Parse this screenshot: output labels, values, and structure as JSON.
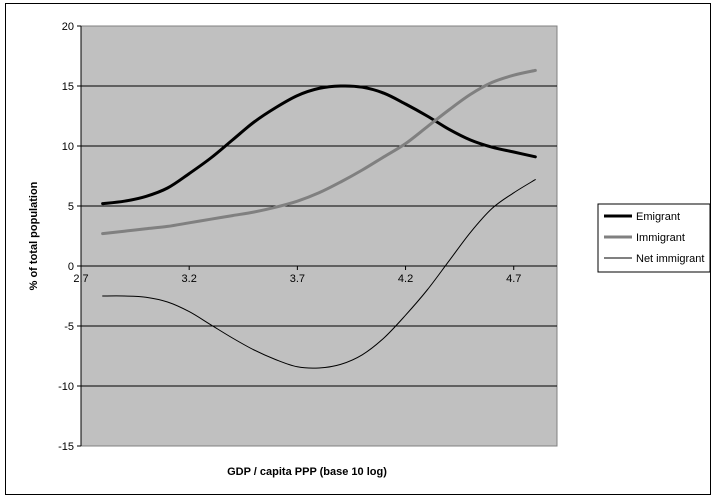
{
  "chart_data": {
    "type": "line",
    "title": "",
    "xlabel": "GDP / capita PPP (base 10 log)",
    "ylabel": "% of total population",
    "xlim": [
      2.7,
      4.9
    ],
    "ylim": [
      -15,
      20
    ],
    "x_ticks": [
      "2.7",
      "3.2",
      "3.7",
      "4.2",
      "4.7"
    ],
    "y_ticks": [
      "-15",
      "-10",
      "-5",
      "0",
      "5",
      "10",
      "15",
      "20"
    ],
    "grid": "horizontal",
    "legend_position": "right",
    "plot_background": "#c0c0c0",
    "series": [
      {
        "name": "Emigrant",
        "color": "#000000",
        "style": "thick",
        "x": [
          2.8,
          2.9,
          3.0,
          3.1,
          3.2,
          3.3,
          3.4,
          3.5,
          3.6,
          3.7,
          3.8,
          3.9,
          4.0,
          4.1,
          4.2,
          4.3,
          4.4,
          4.5,
          4.6,
          4.7,
          4.8
        ],
        "y": [
          5.2,
          5.4,
          5.8,
          6.5,
          7.7,
          9.0,
          10.5,
          12.0,
          13.2,
          14.2,
          14.8,
          15.0,
          14.9,
          14.4,
          13.5,
          12.5,
          11.4,
          10.5,
          9.9,
          9.5,
          9.1
        ]
      },
      {
        "name": "Immigrant",
        "color": "#808080",
        "style": "thick",
        "x": [
          2.8,
          2.9,
          3.0,
          3.1,
          3.2,
          3.3,
          3.4,
          3.5,
          3.6,
          3.7,
          3.8,
          3.9,
          4.0,
          4.1,
          4.2,
          4.3,
          4.4,
          4.5,
          4.6,
          4.7,
          4.8
        ],
        "y": [
          2.7,
          2.9,
          3.1,
          3.3,
          3.6,
          3.9,
          4.2,
          4.5,
          4.9,
          5.4,
          6.1,
          7.0,
          8.0,
          9.1,
          10.2,
          11.6,
          13.0,
          14.3,
          15.3,
          15.9,
          16.3
        ]
      },
      {
        "name": "Net immigrant",
        "color": "#000000",
        "style": "thin",
        "x": [
          2.8,
          2.9,
          3.0,
          3.1,
          3.2,
          3.3,
          3.4,
          3.5,
          3.6,
          3.7,
          3.8,
          3.9,
          4.0,
          4.1,
          4.2,
          4.3,
          4.4,
          4.5,
          4.6,
          4.7,
          4.8
        ],
        "y": [
          -2.5,
          -2.5,
          -2.6,
          -3.0,
          -3.8,
          -4.9,
          -6.0,
          -7.0,
          -7.8,
          -8.4,
          -8.5,
          -8.2,
          -7.4,
          -6.0,
          -4.1,
          -2.0,
          0.4,
          2.8,
          4.8,
          6.1,
          7.2
        ]
      }
    ]
  }
}
